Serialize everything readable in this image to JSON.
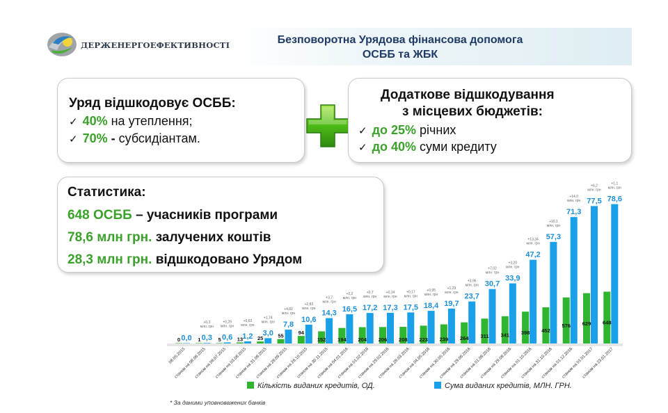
{
  "header": {
    "logo_text": "ДЕРЖЕНЕРГОЕФЕКТИВНОСТІ",
    "title_line1": "Безповоротна Урядова фінансова допомога",
    "title_line2": "ОСББ та ЖБК"
  },
  "card_left": {
    "heading": "Уряд відшкодовує ОСББ:",
    "items": [
      {
        "check": "✓",
        "pct": "40%",
        "sep": "",
        "text": " на утеплення;"
      },
      {
        "check": "✓",
        "pct": "70%",
        "sep": " -",
        "text": " субсидіантам."
      }
    ]
  },
  "card_right": {
    "heading_line1": "Додаткове відшкодування",
    "heading_line2": "з місцевих бюджетів:",
    "items": [
      {
        "check": "✓",
        "pct": "до 25%",
        "text": " річних"
      },
      {
        "check": "✓",
        "pct": "до 40%",
        "text": " суми кредиту"
      }
    ]
  },
  "stats": {
    "heading": "Статистика:",
    "rows": [
      {
        "value": "648 ОСББ",
        "text": " – учасників програми",
        "value_green": true
      },
      {
        "value": "78,6 млн грн.",
        "text": " залучених коштів",
        "value_green": true
      },
      {
        "value": "28,3 млн грн.",
        "text": " відшкодовано Урядом",
        "value_green": true
      }
    ]
  },
  "colors": {
    "green": "#3aa12a",
    "bar_green": "#2fb52f",
    "bar_blue": "#1aa0e8",
    "label_blue": "#1d8fd6",
    "title_blue": "#1f3a66"
  },
  "icons": {
    "plus": "plus-icon",
    "check": "check-icon",
    "logo": "logo-icon"
  },
  "chart_data": {
    "type": "bar",
    "categories": [
      "08.05.2015",
      "станом на 08.06.2015",
      "станом на 06.07.2015",
      "станом на 03.08.2015",
      "станом на 31.08.2015",
      "станом на 28.09.2015",
      "станом на 26.10.2015",
      "станом на 30.11.2015",
      "станом на 04.01.2016",
      "станом на 01.02.2016",
      "станом на 29.02.2016",
      "станом на 28.03.2016",
      "станом на 04.05.2016",
      "станом на 30.05.2016",
      "станом на 29.06.2016",
      "станом на 01.08.2016",
      "станом на 29.08.2016",
      "станом на 01.10.2016",
      "станом на 31.10.2016",
      "станом на 01.12.2016",
      "станом на 01.01.2017",
      "станом на 23.01.2017"
    ],
    "series": [
      {
        "name": "Кількість виданих кредитів, ОД.",
        "values": [
          0,
          1,
          5,
          13,
          25,
          55,
          94,
          152,
          194,
          204,
          206,
          208,
          223,
          239,
          264,
          311,
          341,
          398,
          452,
          576,
          629,
          648
        ]
      },
      {
        "name": "Сума виданих кредитів, МЛН. ГРН.",
        "values": [
          0.0,
          0.3,
          0.6,
          1.2,
          3.0,
          7.8,
          10.6,
          14.3,
          16.5,
          17.2,
          17.3,
          17.5,
          18.4,
          19.7,
          23.7,
          30.7,
          33.9,
          47.2,
          57.3,
          71.3,
          77.5,
          78.6
        ]
      }
    ],
    "count_labels": [
      "0",
      "1",
      "5",
      "13",
      "25",
      "55",
      "94",
      "152",
      "194",
      "204",
      "206",
      "208",
      "223",
      "239",
      "264",
      "311",
      "341",
      "398",
      "452",
      "576",
      "629",
      "648"
    ],
    "sum_labels": [
      "0,0",
      "0,3",
      "0,6",
      "1,2",
      "3,0",
      "7,8",
      "10,6",
      "14,3",
      "16,5",
      "17,2",
      "17,3",
      "17,5",
      "18,4",
      "19,7",
      "23,7",
      "30,7",
      "33,9",
      "47,2",
      "57,3",
      "71,3",
      "77,5",
      "78,6"
    ],
    "increments": [
      "",
      "+0,3 млн. грн",
      "+0,29 млн. грн",
      "+0,63 млн. грн",
      "+1,74 млн. грн",
      "+4,82 млн. грн",
      "+2,83 млн. грн",
      "+3,7 млн. грн",
      "+2,2 млн. грн",
      "+0,7 млн. грн",
      "+0,14 млн. грн",
      "+0,17 млн. грн",
      "+0,95 млн. грн",
      "+1,29 млн. грн",
      "+3,96 млн. грн",
      "+7,02 млн. грн",
      "+3,20 млн. грн",
      "+13,34 млн. грн",
      "+10,1 млн. грн",
      "+14,0 млн. грн",
      "+6,2 млн. грн",
      "+1,1 млн. грн"
    ],
    "legend": [
      "Кількість виданих кредитів, ОД.",
      "Сума виданих кредитів, МЛН. ГРН."
    ],
    "legend_position": "bottom",
    "grid": false,
    "note": "* За даними уповноважених банків"
  }
}
